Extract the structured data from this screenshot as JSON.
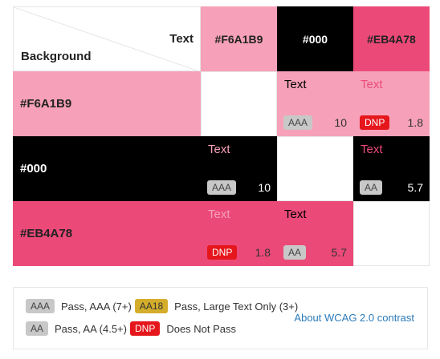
{
  "corner": {
    "foreground_label": "Text",
    "background_label": "Background"
  },
  "colors": {
    "pink": "#F6A1B9",
    "black": "#000000",
    "rose": "#EB4A78",
    "badge_gray": "#c8c8c8",
    "badge_red": "#e5171c",
    "badge_gold": "#d4ad2a",
    "link": "#2b7bb9"
  },
  "columns": [
    "#F6A1B9",
    "#000",
    "#EB4A78"
  ],
  "rows": [
    {
      "label": "#F6A1B9",
      "cells": [
        null,
        {
          "text": "Text",
          "badge": "AAA",
          "ratio": "10"
        },
        {
          "text": "Text",
          "badge": "DNP",
          "ratio": "1.8"
        }
      ]
    },
    {
      "label": "#000",
      "cells": [
        {
          "text": "Text",
          "badge": "AAA",
          "ratio": "10"
        },
        null,
        {
          "text": "Text",
          "badge": "AA",
          "ratio": "5.7"
        }
      ]
    },
    {
      "label": "#EB4A78",
      "cells": [
        {
          "text": "Text",
          "badge": "DNP",
          "ratio": "1.8"
        },
        {
          "text": "Text",
          "badge": "AA",
          "ratio": "5.7"
        },
        null
      ]
    }
  ],
  "legend": {
    "aaa_badge": "AAA",
    "aaa_text": "Pass, AAA (7+)",
    "aa18_badge": "AA18",
    "aa18_text": "Pass, Large Text Only (3+)",
    "aa_badge": "AA",
    "aa_text": "Pass, AA (4.5+)",
    "dnp_badge": "DNP",
    "dnp_text": "Does Not Pass",
    "link_text": "About WCAG 2.0 contrast"
  }
}
